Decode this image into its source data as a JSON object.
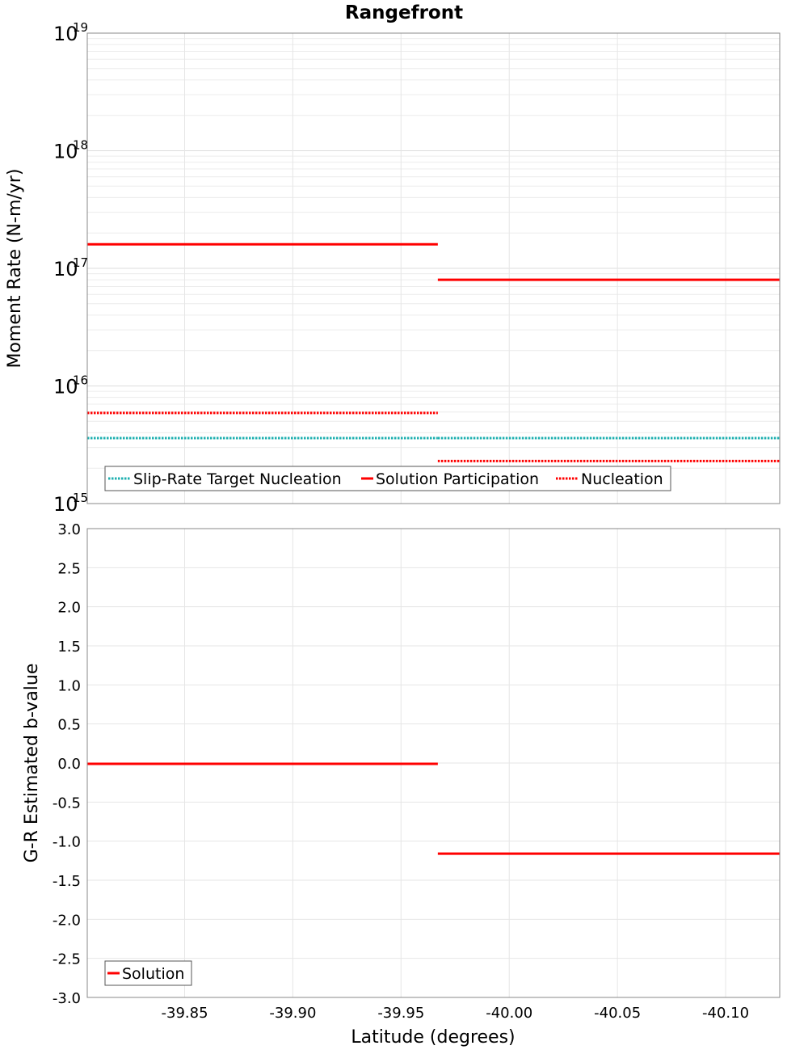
{
  "chart_data": [
    {
      "type": "line",
      "title": "Rangefront",
      "ylabel": "Moment Rate (N-m/yr)",
      "xlabel": "",
      "yscale": "log",
      "ylim": [
        1000000000000000.0,
        1e+19
      ],
      "xlim": [
        -39.805,
        -40.125
      ],
      "y_tick_base": "10",
      "y_tick_exponents": [
        "15",
        "16",
        "17",
        "18",
        "19"
      ],
      "grid": true,
      "legend_position": "bottom-left",
      "series": [
        {
          "name": "Slip-Rate Target Nucleation",
          "color": "#1fb0b0",
          "style": "dotted",
          "segments": [
            {
              "x": [
                -39.805,
                -39.967
              ],
              "y": 3600000000000000.0
            },
            {
              "x": [
                -39.967,
                -40.125
              ],
              "y": 3600000000000000.0
            }
          ]
        },
        {
          "name": "Solution Participation",
          "color": "#ff0000",
          "style": "solid",
          "segments": [
            {
              "x": [
                -39.805,
                -39.967
              ],
              "y": 1.6e+17
            },
            {
              "x": [
                -39.967,
                -40.125
              ],
              "y": 8e+16
            }
          ]
        },
        {
          "name": "Nucleation",
          "color": "#ff0000",
          "style": "dotted",
          "segments": [
            {
              "x": [
                -39.805,
                -39.967
              ],
              "y": 5900000000000000.0
            },
            {
              "x": [
                -39.967,
                -40.125
              ],
              "y": 2300000000000000.0
            }
          ]
        }
      ]
    },
    {
      "type": "line",
      "title": "",
      "ylabel": "G-R Estimated b-value",
      "xlabel": "Latitude (degrees)",
      "yscale": "linear",
      "ylim": [
        -3.0,
        3.0
      ],
      "xlim": [
        -39.805,
        -40.125
      ],
      "x_ticks": [
        -39.85,
        -39.9,
        -39.95,
        -40.0,
        -40.05,
        -40.1
      ],
      "x_tick_labels": [
        "-39.85",
        "-39.90",
        "-39.95",
        "-40.00",
        "-40.05",
        "-40.10"
      ],
      "y_ticks": [
        3.0,
        2.5,
        2.0,
        1.5,
        1.0,
        0.5,
        0.0,
        -0.5,
        -1.0,
        -1.5,
        -2.0,
        -2.5,
        -3.0
      ],
      "y_tick_labels": [
        "3.0",
        "2.5",
        "2.0",
        "1.5",
        "1.0",
        "0.5",
        "0.0",
        "-0.5",
        "-1.0",
        "-1.5",
        "-2.0",
        "-2.5",
        "-3.0"
      ],
      "grid": true,
      "legend_position": "bottom-left",
      "series": [
        {
          "name": "Solution",
          "color": "#ff0000",
          "style": "solid",
          "segments": [
            {
              "x": [
                -39.805,
                -39.967
              ],
              "y": -0.01
            },
            {
              "x": [
                -39.967,
                -40.125
              ],
              "y": -1.16
            }
          ]
        }
      ]
    }
  ]
}
